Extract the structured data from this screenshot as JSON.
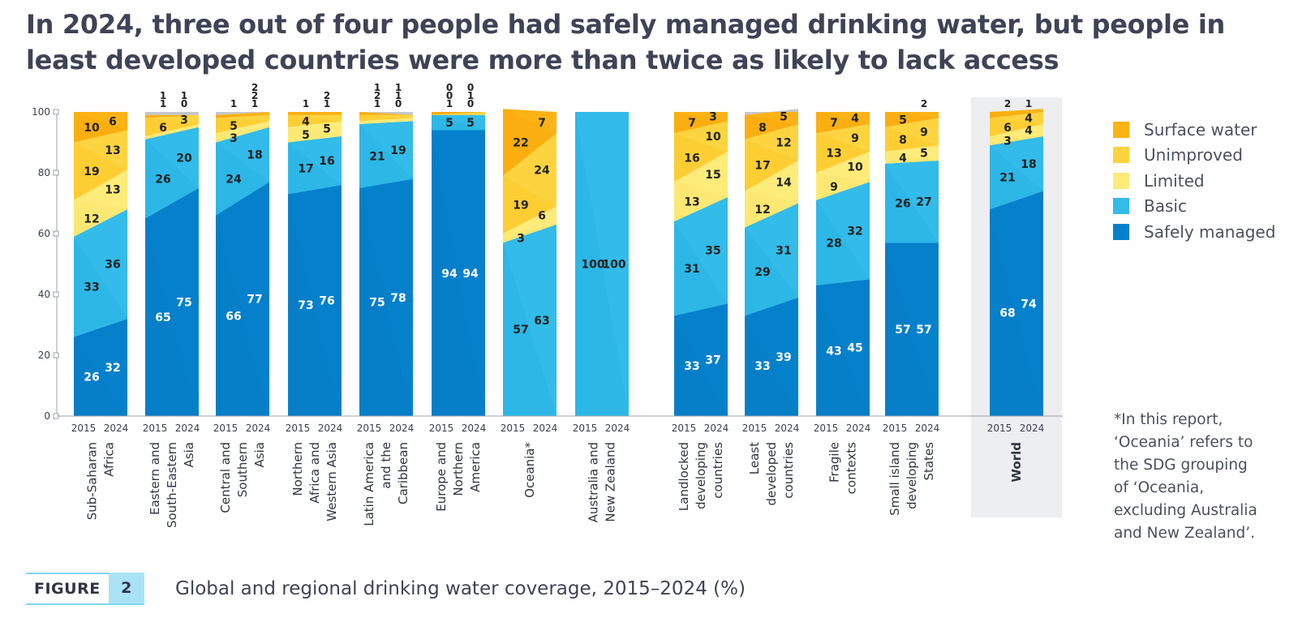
{
  "headline": "In 2024, three out of four people had safely managed drinking water, but people in least developed countries were more than twice as likely to lack access",
  "legend": [
    {
      "label": "Surface water",
      "color": "#fbb316"
    },
    {
      "label": "Unimproved",
      "color": "#fdd43f"
    },
    {
      "label": "Limited",
      "color": "#fdeb7a"
    },
    {
      "label": "Basic",
      "color": "#33bbe9"
    },
    {
      "label": "Safely managed",
      "color": "#0581cc"
    }
  ],
  "footnote": "*In this report,\n‘Oceania’ refers to\nthe SDG grouping\nof ‘Oceania,\nexcluding Australia\nand New Zealand’.",
  "figure": {
    "word": "FIGURE",
    "number": "2",
    "caption": "Global and regional drinking water coverage, 2015–2024 (%)"
  },
  "chart_data": {
    "type": "area",
    "stacked": true,
    "ylim": [
      0,
      100
    ],
    "yticks": [
      0,
      20,
      40,
      60,
      80,
      100
    ],
    "years": [
      "2015",
      "2024"
    ],
    "series": [
      "Safely managed",
      "Basic",
      "Limited",
      "Unimproved",
      "Surface water"
    ],
    "colors": {
      "Safely managed": [
        "#0a7cc4",
        "#0581cc"
      ],
      "Basic": [
        "#27b4e6",
        "#33bbe9"
      ],
      "Limited": [
        "#fce66d",
        "#fdeb7a"
      ],
      "Unimproved": [
        "#fcc92b",
        "#fdd43f"
      ],
      "Surface water": [
        "#f9a90d",
        "#fbb316"
      ]
    },
    "groups": [
      {
        "name": "Sub-Saharan Africa",
        "label_lines": [
          "Sub-Saharan",
          "Africa"
        ],
        "values": {
          "2015": [
            26,
            33,
            12,
            19,
            10
          ],
          "2024": [
            32,
            36,
            13,
            13,
            6
          ]
        },
        "labels": {
          "2015": [
            "26",
            "33",
            "12",
            "19",
            "10"
          ],
          "2024": [
            "32",
            "36",
            "13",
            "13",
            "6"
          ]
        }
      },
      {
        "name": "Eastern and South-Eastern Asia",
        "label_lines": [
          "Eastern and",
          "South-Eastern",
          "Asia"
        ],
        "values": {
          "2015": [
            65,
            26,
            1,
            6,
            1
          ],
          "2024": [
            75,
            20,
            1,
            3,
            0
          ]
        },
        "labels": {
          "2015": [
            "65",
            "26",
            "1",
            "6",
            "1"
          ],
          "2024": [
            "75",
            "20",
            "1",
            "3",
            "0"
          ]
        }
      },
      {
        "name": "Central and Southern Asia",
        "label_lines": [
          "Central and",
          "Southern",
          "Asia"
        ],
        "values": {
          "2015": [
            66,
            24,
            3,
            5,
            1
          ],
          "2024": [
            77,
            18,
            2,
            2,
            1
          ]
        },
        "labels": {
          "2015": [
            "66",
            "24",
            "3",
            "5",
            "1"
          ],
          "2024": [
            "77",
            "18",
            "2",
            "2",
            "1"
          ]
        }
      },
      {
        "name": "Northern Africa and Western Asia",
        "label_lines": [
          "Northern",
          "Africa and",
          "Western Asia"
        ],
        "values": {
          "2015": [
            73,
            17,
            5,
            4,
            1
          ],
          "2024": [
            76,
            16,
            5,
            2,
            1
          ]
        },
        "labels": {
          "2015": [
            "73",
            "17",
            "5",
            "4",
            "1"
          ],
          "2024": [
            "76",
            "16",
            "5",
            "2",
            "1"
          ]
        }
      },
      {
        "name": "Latin America and the Caribbean",
        "label_lines": [
          "Latin America",
          "and the",
          "Caribbean"
        ],
        "values": {
          "2015": [
            75,
            21,
            1,
            2,
            1
          ],
          "2024": [
            78,
            19,
            1,
            1,
            0
          ]
        },
        "labels": {
          "2015": [
            "75",
            "21",
            "1",
            "2",
            "1"
          ],
          "2024": [
            "78",
            "19",
            "1",
            "1",
            "0"
          ]
        }
      },
      {
        "name": "Europe and Northern America",
        "label_lines": [
          "Europe and",
          "Northern",
          "America"
        ],
        "values": {
          "2015": [
            94,
            5,
            0,
            0,
            1
          ],
          "2024": [
            94,
            5,
            0,
            1,
            0
          ]
        },
        "labels": {
          "2015": [
            "94",
            "5",
            "0",
            "0",
            "1"
          ],
          "2024": [
            "94",
            "5",
            "0",
            "1",
            "0"
          ]
        }
      },
      {
        "name": "Oceania*",
        "label_lines": [
          "Oceania*"
        ],
        "values": {
          "2015": [
            0,
            57,
            3,
            19,
            22
          ],
          "2024": [
            0,
            63,
            6,
            24,
            7
          ]
        },
        "labels": {
          "2015": [
            "",
            "57",
            "3",
            "19",
            "22"
          ],
          "2024": [
            "",
            "63",
            "6",
            "24",
            "7"
          ]
        }
      },
      {
        "name": "Australia and New Zealand",
        "label_lines": [
          "Australia and",
          "New Zealand"
        ],
        "values": {
          "2015": [
            0,
            100,
            0,
            0,
            0
          ],
          "2024": [
            0,
            100,
            0,
            0,
            0
          ]
        },
        "labels": {
          "2015": [
            "",
            "100",
            "",
            "",
            ""
          ],
          "2024": [
            "",
            "100",
            "",
            "",
            ""
          ]
        }
      },
      {
        "name": "Landlocked developing countries",
        "label_lines": [
          "Landlocked",
          "developing",
          "countries"
        ],
        "values": {
          "2015": [
            33,
            31,
            13,
            16,
            7
          ],
          "2024": [
            37,
            35,
            15,
            10,
            3
          ]
        },
        "labels": {
          "2015": [
            "33",
            "31",
            "13",
            "16",
            "7"
          ],
          "2024": [
            "37",
            "35",
            "15",
            "10",
            "3"
          ]
        }
      },
      {
        "name": "Least developed countries",
        "label_lines": [
          "Least",
          "developed",
          "countries"
        ],
        "values": {
          "2015": [
            33,
            29,
            12,
            17,
            8
          ],
          "2024": [
            39,
            31,
            14,
            12,
            5
          ]
        },
        "labels": {
          "2015": [
            "33",
            "29",
            "12",
            "17",
            "8"
          ],
          "2024": [
            "39",
            "31",
            "14",
            "12",
            "5"
          ]
        }
      },
      {
        "name": "Fragile contexts",
        "label_lines": [
          "Fragile",
          "contexts"
        ],
        "values": {
          "2015": [
            43,
            28,
            9,
            13,
            7
          ],
          "2024": [
            45,
            32,
            10,
            9,
            4
          ]
        },
        "labels": {
          "2015": [
            "43",
            "28",
            "9",
            "13",
            "7"
          ],
          "2024": [
            "45",
            "32",
            "10",
            "9",
            "4"
          ]
        }
      },
      {
        "name": "Small island developing States",
        "label_lines": [
          "Small island",
          "developing",
          "States"
        ],
        "values": {
          "2015": [
            57,
            26,
            4,
            8,
            5
          ],
          "2024": [
            57,
            27,
            5,
            9,
            2
          ]
        },
        "labels": {
          "2015": [
            "57",
            "26",
            "4",
            "8",
            "5"
          ],
          "2024": [
            "57",
            "27",
            "5",
            "9",
            "2"
          ]
        }
      },
      {
        "name": "World",
        "label_lines": [
          "World"
        ],
        "highlight": true,
        "values": {
          "2015": [
            68,
            21,
            3,
            6,
            2
          ],
          "2024": [
            74,
            18,
            4,
            4,
            1
          ]
        },
        "labels": {
          "2015": [
            "68",
            "21",
            "3",
            "6",
            "2"
          ],
          "2024": [
            "74",
            "18",
            "4",
            "4",
            "1"
          ]
        }
      }
    ]
  }
}
